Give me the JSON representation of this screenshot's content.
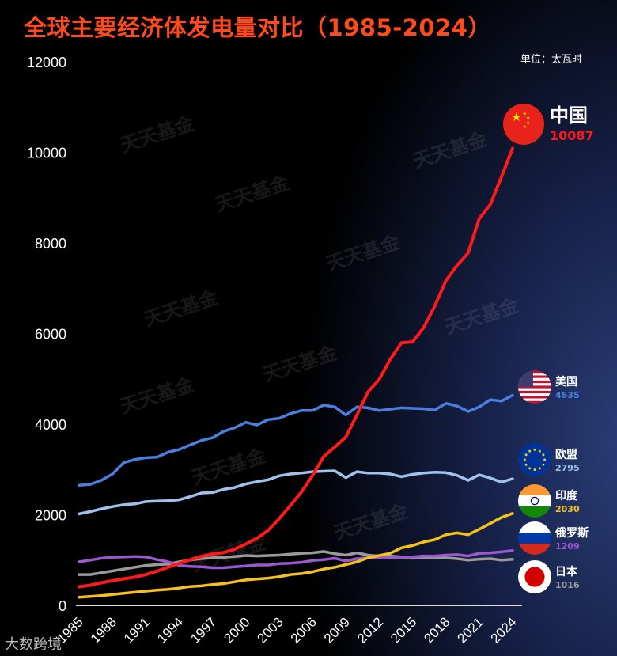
{
  "title": "全球主要经济体发电量对比（1985-2024）",
  "unit": "单位：太瓦时",
  "watermark": "天天基金",
  "footer_logo": "大数跨境",
  "chart_data": {
    "type": "line",
    "title": "全球主要经济体发电量对比（1985-2024）",
    "ylabel": "单位：太瓦时",
    "ylim": [
      0,
      12000
    ],
    "yticks": [
      0,
      2000,
      4000,
      6000,
      8000,
      10000,
      12000
    ],
    "xticks": [
      1985,
      1988,
      1991,
      1994,
      1997,
      2000,
      2003,
      2006,
      2009,
      2012,
      2015,
      2018,
      2021,
      2024
    ],
    "x_start": 1985,
    "x_end": 2024,
    "grid": false,
    "series": [
      {
        "name": "中国",
        "color": "#ff1a1a",
        "flag": "china-flag",
        "last_label": "10087",
        "values": [
          411,
          446,
          497,
          545,
          585,
          621,
          678,
          754,
          840,
          928,
          1007,
          1081,
          1134,
          1167,
          1239,
          1356,
          1481,
          1654,
          1911,
          2203,
          2500,
          2866,
          3282,
          3496,
          3714,
          4207,
          4713,
          4988,
          5432,
          5795,
          5815,
          6133,
          6604,
          7166,
          7503,
          7779,
          8534,
          8849,
          9456,
          10087
        ]
      },
      {
        "name": "美国",
        "color": "#4a7fe0",
        "flag": "usa-flag",
        "last_label": "4635",
        "values": [
          2650,
          2670,
          2760,
          2900,
          3150,
          3220,
          3260,
          3270,
          3380,
          3440,
          3540,
          3640,
          3700,
          3840,
          3920,
          4040,
          3980,
          4100,
          4130,
          4230,
          4300,
          4300,
          4420,
          4380,
          4200,
          4380,
          4360,
          4300,
          4330,
          4360,
          4350,
          4340,
          4310,
          4460,
          4400,
          4280,
          4380,
          4540,
          4510,
          4635
        ]
      },
      {
        "name": "欧盟",
        "color": "#9fc3ec",
        "flag": "eu-flag",
        "last_label": "2795",
        "values": [
          2020,
          2070,
          2130,
          2180,
          2220,
          2240,
          2290,
          2300,
          2310,
          2330,
          2400,
          2480,
          2490,
          2560,
          2600,
          2680,
          2730,
          2770,
          2860,
          2900,
          2920,
          2950,
          2960,
          2970,
          2820,
          2950,
          2920,
          2920,
          2900,
          2840,
          2890,
          2920,
          2940,
          2930,
          2870,
          2760,
          2880,
          2810,
          2720,
          2795
        ]
      },
      {
        "name": "印度",
        "color": "#f5c21b",
        "flag": "india-flag",
        "last_label": "2030",
        "values": [
          180,
          195,
          215,
          240,
          265,
          290,
          315,
          335,
          355,
          380,
          415,
          430,
          460,
          480,
          520,
          560,
          580,
          600,
          630,
          680,
          700,
          740,
          800,
          840,
          900,
          960,
          1050,
          1100,
          1150,
          1270,
          1320,
          1400,
          1450,
          1560,
          1600,
          1560,
          1680,
          1810,
          1940,
          2030
        ]
      },
      {
        "name": "俄罗斯",
        "color": "#9b59d0",
        "flag": "russia-flag",
        "last_label": "1209",
        "values": [
          960,
          1000,
          1040,
          1060,
          1070,
          1080,
          1070,
          1010,
          960,
          880,
          860,
          850,
          830,
          830,
          850,
          870,
          890,
          890,
          920,
          930,
          950,
          990,
          1010,
          1040,
          980,
          1030,
          1050,
          1060,
          1050,
          1060,
          1070,
          1090,
          1090,
          1110,
          1120,
          1090,
          1150,
          1160,
          1180,
          1209
        ]
      },
      {
        "name": "日本",
        "color": "#9a9a9a",
        "flag": "japan-flag",
        "last_label": "1016",
        "values": [
          680,
          680,
          720,
          760,
          800,
          840,
          880,
          900,
          910,
          960,
          1000,
          1030,
          1050,
          1060,
          1080,
          1100,
          1090,
          1100,
          1110,
          1130,
          1150,
          1160,
          1190,
          1140,
          1110,
          1160,
          1110,
          1090,
          1090,
          1070,
          1040,
          1060,
          1060,
          1050,
          1030,
          1000,
          1020,
          1030,
          1000,
          1016
        ]
      }
    ]
  }
}
